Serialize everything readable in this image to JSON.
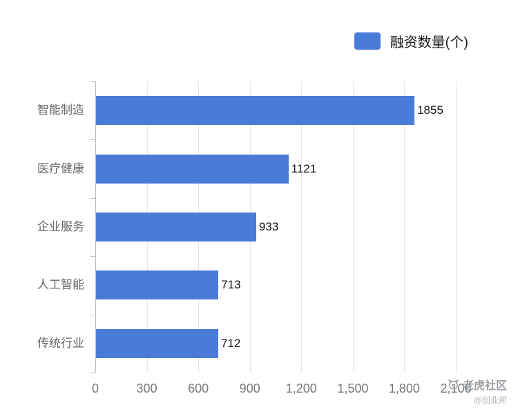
{
  "legend": {
    "label": "融资数量(个)",
    "color": "#4a7bd9"
  },
  "chart_data": {
    "type": "bar",
    "orientation": "horizontal",
    "title": "",
    "xlabel": "",
    "ylabel": "",
    "series_name": "融资数量(个)",
    "categories": [
      "智能制造",
      "医疗健康",
      "企业服务",
      "人工智能",
      "传统行业"
    ],
    "values": [
      1855,
      1121,
      933,
      713,
      712
    ],
    "value_labels": [
      "1855",
      "1121",
      "933",
      "713",
      "712"
    ],
    "xlim": [
      0,
      2100
    ],
    "xtick_values": [
      0,
      300,
      600,
      900,
      1200,
      1500,
      1800,
      2100
    ],
    "xtick_labels": [
      "0",
      "300",
      "600",
      "900",
      "1,200",
      "1,500",
      "1,800",
      "2,100"
    ],
    "grid": true,
    "legend_position": "top-right",
    "bar_color": "#4a7bd9"
  },
  "watermark": {
    "brand": "老虎社区",
    "handle": "@创业邦"
  }
}
